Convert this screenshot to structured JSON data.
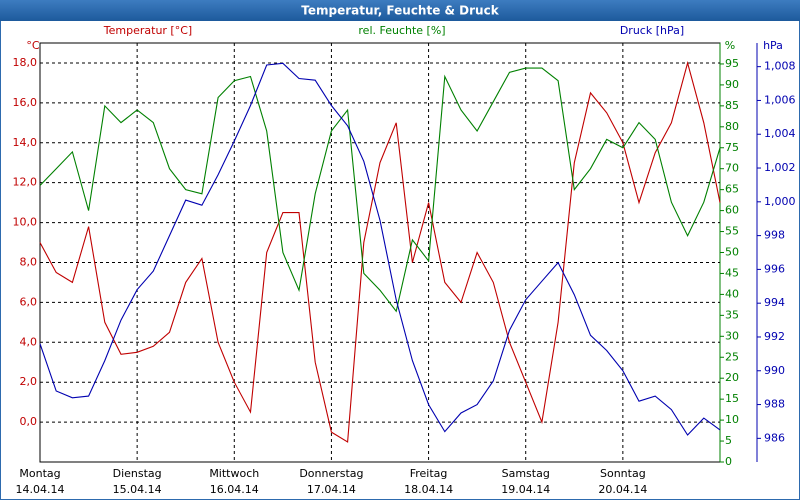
{
  "chart_data": {
    "type": "line",
    "title": "Temperatur, Feuchte & Druck",
    "ylabel": "Temperatur [°C]",
    "y2label": "rel. Feuchte [%]",
    "y3label": "Druck [hPa]",
    "yunit": "°C",
    "y2unit": "%",
    "y3unit": "hPa",
    "x": [
      0,
      4,
      8,
      12,
      16,
      20,
      24,
      28,
      32,
      36,
      40,
      44,
      48,
      52,
      56,
      60,
      64,
      68,
      72,
      76,
      80,
      84,
      88,
      92,
      96,
      100,
      104,
      108,
      112,
      116,
      120,
      124,
      128,
      132,
      136,
      140,
      144,
      148,
      152,
      156,
      160,
      164,
      168
    ],
    "xlim": [
      0,
      168
    ],
    "xticks": [
      {
        "value": 0,
        "label": "Montag"
      },
      {
        "value": 24,
        "label": "Dienstag"
      },
      {
        "value": 48,
        "label": "Mittwoch"
      },
      {
        "value": 72,
        "label": "Donnerstag"
      },
      {
        "value": 96,
        "label": "Freitag"
      },
      {
        "value": 120,
        "label": "Samstag"
      },
      {
        "value": 144,
        "label": "Sonntag"
      }
    ],
    "xtick_dates": [
      "14.04.14",
      "15.04.14",
      "16.04.14",
      "17.04.14",
      "18.04.14",
      "19.04.14",
      "20.04.14"
    ],
    "ylim": [
      -2,
      19
    ],
    "yticks": [
      {
        "value": 0,
        "label": "0,0"
      },
      {
        "value": 2,
        "label": "2,0"
      },
      {
        "value": 4,
        "label": "4,0"
      },
      {
        "value": 6,
        "label": "6,0"
      },
      {
        "value": 8,
        "label": "8,0"
      },
      {
        "value": 10,
        "label": "10,0"
      },
      {
        "value": 12,
        "label": "12,0"
      },
      {
        "value": 14,
        "label": "14,0"
      },
      {
        "value": 16,
        "label": "16,0"
      },
      {
        "value": 18,
        "label": "18,0"
      }
    ],
    "y2lim": [
      0,
      100
    ],
    "y2ticks": [
      0,
      5,
      10,
      15,
      20,
      25,
      30,
      35,
      40,
      45,
      50,
      55,
      60,
      65,
      70,
      75,
      80,
      85,
      90,
      95
    ],
    "y3lim": [
      984.6,
      1009.4
    ],
    "y3ticks": [
      986,
      988,
      990,
      992,
      994,
      996,
      998,
      {
        "value": 1000,
        "label": "1,000"
      },
      {
        "value": 1002,
        "label": "1,002"
      },
      {
        "value": 1004,
        "label": "1,004"
      },
      {
        "value": 1006,
        "label": "1,006"
      },
      {
        "value": 1008,
        "label": "1,008"
      }
    ],
    "grid": true,
    "series": [
      {
        "name": "Temperatur",
        "color": "#c00000",
        "axis": "y",
        "values": [
          9,
          7.5,
          7,
          9.8,
          5,
          3.4,
          3.5,
          3.8,
          4.5,
          7,
          8.2,
          4,
          2,
          0.5,
          8.5,
          10.5,
          10.5,
          3,
          -0.5,
          -1,
          9,
          13,
          15,
          8,
          11,
          7,
          6,
          8.5,
          7,
          4,
          2,
          0,
          5,
          13,
          16.5,
          15.5,
          14,
          11,
          13.5,
          15,
          18,
          15,
          11
        ]
      },
      {
        "name": "rel. Feuchte",
        "color": "#008000",
        "axis": "y2",
        "values": [
          66,
          70,
          74,
          60,
          85,
          81,
          84,
          81,
          70,
          65,
          64,
          87,
          91,
          92,
          79,
          50,
          41,
          64,
          79,
          84,
          45,
          41,
          36,
          53,
          48,
          92,
          84,
          79,
          86,
          93,
          94,
          94,
          91,
          65,
          70,
          77,
          75,
          81,
          77,
          62,
          54,
          62,
          75
        ]
      },
      {
        "name": "Druck",
        "color": "#0000b0",
        "axis": "y3",
        "values": [
          991.6,
          988.8,
          988.4,
          988.5,
          990.6,
          993,
          994.8,
          995.9,
          998,
          1000.1,
          999.8,
          1001.6,
          1003.6,
          1005.7,
          1008.1,
          1008.2,
          1007.3,
          1007.2,
          1005.7,
          1004.5,
          1002.4,
          998.9,
          994.2,
          990.6,
          988,
          986.4,
          987.5,
          988,
          989.4,
          992.4,
          994.2,
          995.3,
          996.4,
          994.5,
          992.1,
          991.2,
          990,
          988.2,
          988.5,
          987.7,
          986.2,
          987.2,
          986.5
        ]
      }
    ]
  }
}
